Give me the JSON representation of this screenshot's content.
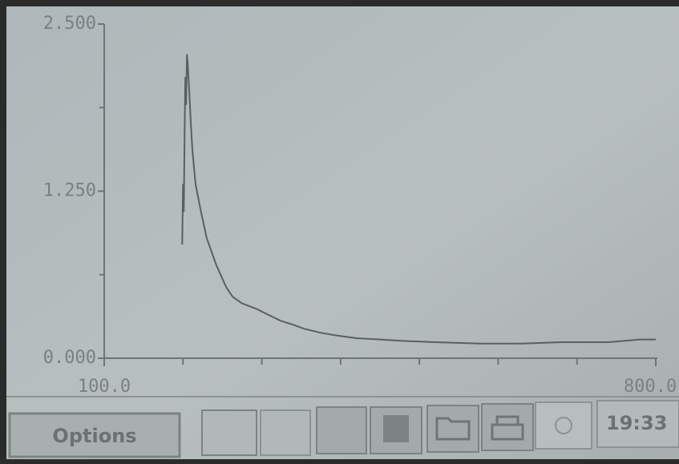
{
  "chart_data": {
    "type": "line",
    "x": [
      199,
      200,
      201,
      202,
      203,
      204,
      205,
      206,
      208,
      210,
      212,
      216,
      222,
      230,
      242,
      255,
      263,
      275,
      293,
      310,
      324,
      340,
      354,
      375,
      395,
      420,
      450,
      476,
      520,
      578,
      630,
      680,
      740,
      780,
      800
    ],
    "values": [
      0.85,
      1.3,
      1.1,
      1.7,
      2.1,
      1.9,
      2.27,
      2.2,
      2.0,
      1.75,
      1.55,
      1.3,
      1.12,
      0.9,
      0.7,
      0.53,
      0.46,
      0.41,
      0.37,
      0.32,
      0.28,
      0.25,
      0.22,
      0.19,
      0.17,
      0.15,
      0.14,
      0.13,
      0.12,
      0.11,
      0.11,
      0.12,
      0.12,
      0.14,
      0.14
    ],
    "color": "#5a5f60",
    "xlim": [
      100,
      800
    ],
    "xticks": [
      {
        "value": 100,
        "label": "100.0"
      },
      {
        "value": 800,
        "label": "800.0"
      }
    ],
    "xminorticks": [
      200,
      300,
      400,
      500,
      600,
      700
    ],
    "ylim": [
      0,
      2.5
    ],
    "yticks": [
      {
        "value": 0,
        "label": "0.000"
      },
      {
        "value": 1.25,
        "label": "1.250"
      },
      {
        "value": 2.5,
        "label": "2.500"
      }
    ],
    "yminorticks": [
      0.625,
      1.875
    ],
    "grid": false
  },
  "toolbar": {
    "options": "Options",
    "time": "19:33"
  }
}
